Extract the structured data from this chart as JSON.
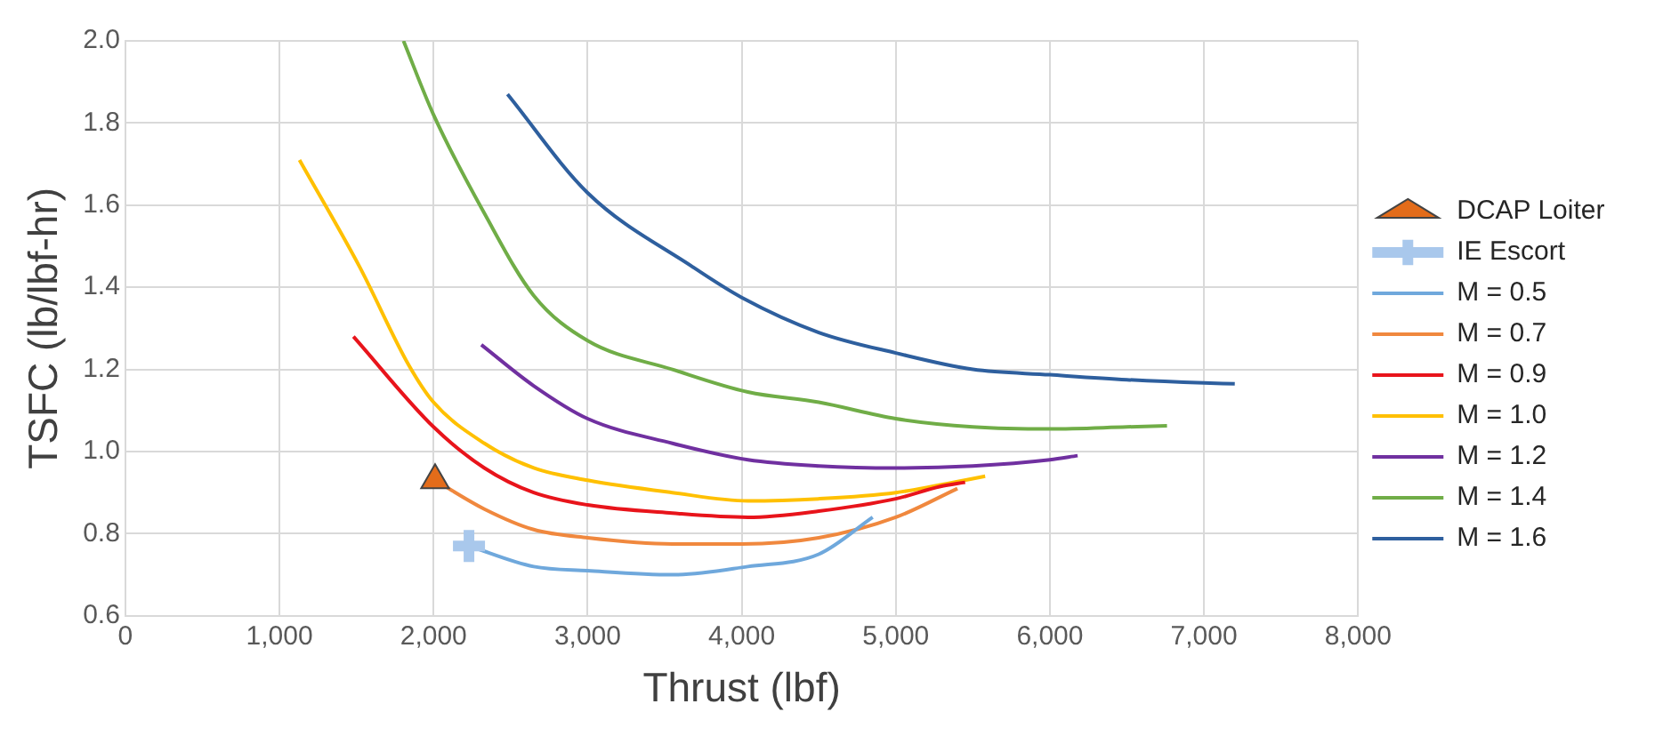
{
  "chart_data": {
    "type": "line",
    "xlabel": "Thrust (lbf)",
    "ylabel": "TSFC (lb/lbf-hr)",
    "grid": true,
    "legend": "right",
    "xlim": [
      0,
      8000
    ],
    "xticks": [
      0,
      {
        "value": 1000,
        "label": "1,000"
      },
      {
        "value": 2000,
        "label": "2,000"
      },
      {
        "value": 3000,
        "label": "3,000"
      },
      {
        "value": 4000,
        "label": "4,000"
      },
      {
        "value": 5000,
        "label": "5,000"
      },
      {
        "value": 6000,
        "label": "6,000"
      },
      {
        "value": 7000,
        "label": "7,000"
      },
      {
        "value": 8000,
        "label": "8,000"
      }
    ],
    "ylim": [
      0.6,
      2.0
    ],
    "yticks": [
      0.6,
      0.8,
      {
        "value": 1,
        "label": "1.0"
      },
      1.2,
      1.4,
      1.6,
      1.8,
      {
        "value": 2,
        "label": "2.0"
      }
    ],
    "series": [
      {
        "name": "DCAP Loiter",
        "type": "scatter",
        "marker": "triangle",
        "color": "#e36c1a",
        "x": [
          2010
        ],
        "values": [
          0.93
        ]
      },
      {
        "name": "IE Escort",
        "type": "scatter",
        "marker": "cross",
        "color": "#a9c8ec",
        "x": [
          2230
        ],
        "values": [
          0.77
        ]
      },
      {
        "name": "M = 0.5",
        "type": "line",
        "marker": "none",
        "color": "#6fa8dc",
        "x": [
          2230,
          2650,
          3000,
          3550,
          4040,
          4500,
          4850
        ],
        "values": [
          0.77,
          0.72,
          0.71,
          0.7,
          0.72,
          0.75,
          0.84
        ]
      },
      {
        "name": "M = 0.7",
        "type": "line",
        "marker": "none",
        "color": "#f0883e",
        "x": [
          2010,
          2330,
          2650,
          3000,
          3550,
          4000,
          4500,
          5000,
          5400
        ],
        "values": [
          0.93,
          0.86,
          0.81,
          0.79,
          0.775,
          0.775,
          0.79,
          0.84,
          0.91
        ]
      },
      {
        "name": "M = 0.9",
        "type": "line",
        "marker": "none",
        "color": "#e8141b",
        "x": [
          1480,
          2000,
          2330,
          2650,
          3000,
          3550,
          4040,
          4500,
          5000,
          5290,
          5450
        ],
        "values": [
          1.28,
          1.06,
          0.96,
          0.9,
          0.87,
          0.85,
          0.84,
          0.855,
          0.885,
          0.915,
          0.925
        ]
      },
      {
        "name": "M = 1.0",
        "type": "line",
        "marker": "none",
        "color": "#ffc000",
        "x": [
          1130,
          1520,
          1840,
          2000,
          2330,
          2650,
          3000,
          3550,
          4040,
          4500,
          5000,
          5580
        ],
        "values": [
          1.71,
          1.45,
          1.21,
          1.12,
          1.02,
          0.96,
          0.93,
          0.9,
          0.88,
          0.885,
          0.9,
          0.94
        ]
      },
      {
        "name": "M = 1.2",
        "type": "line",
        "marker": "none",
        "color": "#7030a0",
        "x": [
          2310,
          2650,
          3000,
          3550,
          4040,
          4500,
          5000,
          5500,
          6000,
          6180
        ],
        "values": [
          1.26,
          1.16,
          1.08,
          1.02,
          0.98,
          0.965,
          0.96,
          0.965,
          0.98,
          0.99
        ]
      },
      {
        "name": "M = 1.4",
        "type": "line",
        "marker": "none",
        "color": "#70ad47",
        "x": [
          1805,
          2000,
          2330,
          2650,
          3000,
          3550,
          4040,
          4500,
          5000,
          5500,
          6000,
          6500,
          6760
        ],
        "values": [
          2.0,
          1.82,
          1.58,
          1.38,
          1.27,
          1.2,
          1.145,
          1.12,
          1.08,
          1.06,
          1.055,
          1.06,
          1.063
        ]
      },
      {
        "name": "M = 1.6",
        "type": "line",
        "marker": "none",
        "color": "#2e5f9e",
        "x": [
          2480,
          3000,
          3680,
          4000,
          4500,
          5000,
          5500,
          6000,
          6500,
          7000,
          7200
        ],
        "values": [
          1.87,
          1.63,
          1.45,
          1.375,
          1.29,
          1.24,
          1.2,
          1.187,
          1.175,
          1.167,
          1.165
        ]
      }
    ]
  }
}
